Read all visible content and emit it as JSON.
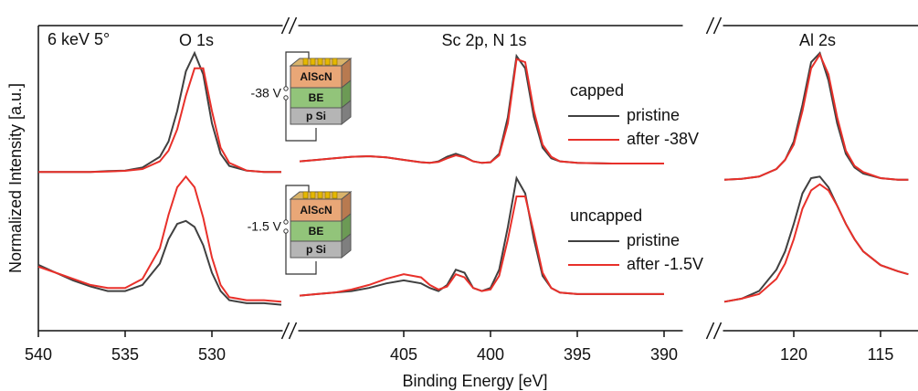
{
  "chart_data": {
    "type": "line",
    "xlabel": "Binding Energy [eV]",
    "ylabel": "Normalized Intensity [a.u.]",
    "note": "6 keV 5°",
    "ylim": [
      0,
      100
    ],
    "panels": [
      {
        "label": "O 1s",
        "xlim": [
          540,
          525.5
        ],
        "xticks": [
          540,
          535,
          530
        ],
        "x": [
          540,
          539,
          538,
          537,
          536,
          535,
          534,
          533,
          532.5,
          532,
          531.5,
          531,
          530.5,
          530,
          529.5,
          529,
          528,
          527,
          526
        ]
      },
      {
        "label": "Sc 2p, N 1s",
        "xlim": [
          411.5,
          388.5
        ],
        "xticks": [
          405,
          400,
          395,
          390
        ],
        "x": [
          411,
          410,
          409,
          408,
          407,
          406,
          405,
          404,
          403.5,
          403,
          402.5,
          402,
          401.5,
          401,
          400.5,
          400,
          399.5,
          399,
          398.5,
          398,
          397.5,
          397,
          396.5,
          396,
          395,
          393,
          391,
          390
        ]
      },
      {
        "label": "Al 2s",
        "xlim": [
          124.5,
          112.9
        ],
        "xticks": [
          120,
          115
        ],
        "x": [
          124,
          123,
          122,
          121,
          120.5,
          120,
          119.5,
          119,
          118.5,
          118,
          117.5,
          117,
          116.5,
          116,
          115,
          114,
          113.4
        ]
      }
    ],
    "groups": [
      {
        "name": "capped",
        "series": [
          {
            "name": "pristine",
            "color": "#404040",
            "values": [
              [
                52,
                52,
                52,
                52,
                52.3,
                52.5,
                53.5,
                57,
                62,
                72,
                85,
                91,
                84,
                68,
                58,
                54,
                52.5,
                52,
                52
              ],
              [
                55.5,
                56,
                56.5,
                57,
                57.2,
                56.8,
                56,
                55.2,
                55,
                55.5,
                57,
                58,
                57,
                55.5,
                55,
                55.2,
                58,
                70,
                90,
                86,
                70,
                60,
                56.5,
                55.5,
                55,
                54.8,
                54.8,
                54.8
              ],
              [
                49.5,
                49.8,
                50.5,
                53,
                56,
                62,
                74,
                88,
                91,
                82,
                68,
                58,
                53.5,
                51.5,
                50,
                49.5,
                49.5
              ]
            ]
          },
          {
            "name": "after -38V",
            "color": "#e8302a",
            "values": [
              [
                52,
                52,
                52,
                52,
                52.2,
                52.4,
                53,
                55.5,
                59,
                66,
                77,
                86,
                86,
                72,
                60,
                55,
                52.5,
                52,
                52
              ],
              [
                55.5,
                56,
                56.5,
                57,
                57.2,
                56.8,
                56,
                55.2,
                55,
                55.3,
                56.5,
                57.5,
                56.8,
                55.5,
                55,
                55.2,
                57.5,
                68,
                89,
                88,
                72,
                61,
                57,
                55.5,
                55,
                54.8,
                54.8,
                54.8
              ],
              [
                49.5,
                49.8,
                50.5,
                53,
                56,
                61,
                72,
                86,
                90.5,
                84,
                70,
                59,
                54,
                52,
                50,
                49.5,
                49.5
              ]
            ]
          }
        ]
      },
      {
        "name": "uncapped",
        "series": [
          {
            "name": "pristine",
            "color": "#404040",
            "values": [
              [
                21.6,
                19,
                16.5,
                14.5,
                13,
                13,
                15,
                22,
                30,
                35,
                36,
                34,
                28,
                19,
                13,
                10,
                9,
                9,
                8.5
              ],
              [
                11.5,
                12,
                12.5,
                13,
                14,
                15.5,
                16.5,
                15.5,
                14,
                13,
                15,
                20,
                19,
                14,
                13,
                14,
                20,
                34,
                50,
                45,
                30,
                18,
                14,
                12.5,
                12,
                12,
                12,
                12
              ],
              [
                9.5,
                10.5,
                13,
                20,
                26,
                35,
                45,
                50,
                50.5,
                47,
                41,
                35,
                30,
                26,
                21.5,
                19.5,
                18.5
              ]
            ]
          },
          {
            "name": "after -1.5V",
            "color": "#e8302a",
            "values": [
              [
                21,
                19,
                17,
                15,
                14,
                14,
                17,
                27,
                38,
                47,
                50.5,
                47,
                37,
                24,
                15,
                11,
                10,
                10,
                9.5
              ],
              [
                11.5,
                12,
                12.5,
                13.5,
                15,
                17,
                18.5,
                17.5,
                15,
                13.5,
                14.5,
                18.5,
                17.5,
                14,
                13,
                13.5,
                18,
                30,
                44,
                44,
                32,
                19,
                14,
                12.5,
                12,
                12,
                12,
                12
              ],
              [
                9.5,
                10.5,
                12,
                17,
                22,
                30,
                40,
                46,
                48,
                46,
                41,
                35,
                30,
                26,
                21.5,
                19.5,
                18.5
              ]
            ]
          }
        ]
      }
    ],
    "insets": [
      {
        "voltage": "-38 V",
        "layers": [
          "AlScN",
          "BE",
          "p Si"
        ]
      },
      {
        "voltage": "-1.5 V",
        "layers": [
          "AlScN",
          "BE",
          "p Si"
        ]
      }
    ]
  }
}
